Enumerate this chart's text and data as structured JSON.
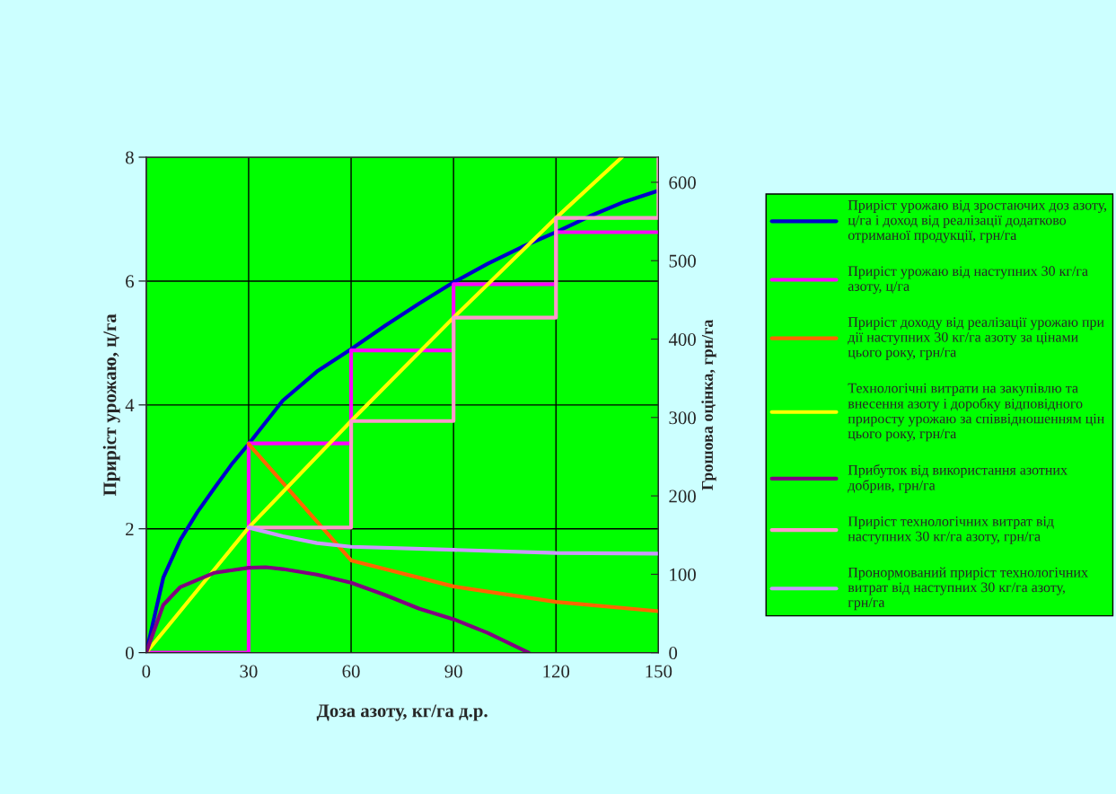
{
  "chart_data": {
    "type": "line",
    "xlabel": "Доза азоту, кг/га д.р.",
    "ylabel": "Приріст урожаю, ц/га",
    "y2label": "Грошова оцінка, грн/га",
    "xlim": [
      0,
      150
    ],
    "xticks": [
      0,
      30,
      60,
      90,
      120,
      150
    ],
    "ylim": [
      0,
      8
    ],
    "yticks": [
      0,
      2,
      4,
      6,
      8
    ],
    "y2lim": [
      0,
      632
    ],
    "y2ticks": [
      0,
      100,
      200,
      300,
      400,
      500,
      600
    ],
    "grid": true,
    "legend": "right",
    "series": [
      {
        "name": "Приріст урожаю від зростаючих доз азоту, ц/га і доход від реалізації додатково отриманої продукції, грн/га",
        "color": "#0000cc",
        "x": [
          0,
          5,
          10,
          15,
          20,
          25,
          30,
          40,
          50,
          60,
          70,
          80,
          90,
          100,
          110,
          120,
          130,
          140,
          150
        ],
        "values": [
          0,
          1.21,
          1.82,
          2.27,
          2.66,
          3.04,
          3.37,
          4.07,
          4.54,
          4.9,
          5.28,
          5.64,
          5.98,
          6.28,
          6.55,
          6.79,
          7.05,
          7.28,
          7.46
        ]
      },
      {
        "name": "Приріст урожаю від наступних 30 кг/га азоту, ц/га",
        "type": "step",
        "color": "#ff00ff",
        "x": [
          0,
          30,
          60,
          90,
          120,
          150
        ],
        "values": [
          0,
          3.38,
          4.88,
          5.95,
          6.79,
          6.79
        ]
      },
      {
        "name": "Приріст доходу від реалізації урожаю при дії наступних 30 кг/га азоту за цінами цього року, грн/га",
        "color": "#ff6600",
        "x": [
          30,
          60,
          90,
          120,
          150
        ],
        "values": [
          3.37,
          1.49,
          1.07,
          0.82,
          0.67
        ]
      },
      {
        "name": "Технологічні витрати на закупівлю та внесення азоту і доробку відповідного приросту урожаю за співвідношенням цін цього року, грн/га",
        "color": "#ffff00",
        "x": [
          0,
          30,
          60,
          90,
          120,
          139.3
        ],
        "values": [
          0,
          2.02,
          3.74,
          5.41,
          7.02,
          8
        ]
      },
      {
        "name": "Прибуток від використання азотних добрив, грн/га",
        "color": "#800080",
        "x": [
          0,
          5,
          10,
          20,
          30,
          35,
          40,
          50,
          60,
          70,
          80,
          90,
          100,
          112
        ],
        "values": [
          0,
          0.77,
          1.06,
          1.29,
          1.37,
          1.38,
          1.35,
          1.26,
          1.13,
          0.93,
          0.71,
          0.54,
          0.32,
          0
        ]
      },
      {
        "name": "Приріст технологічних витрат від наступних 30 кг/га азоту, грн/га",
        "type": "step",
        "color": "#ff99cc",
        "x": [
          30,
          60,
          90,
          120,
          150
        ],
        "values": [
          2.02,
          3.74,
          5.41,
          7.02,
          8
        ]
      },
      {
        "name": "Пронормований приріст технологічних витрат від наступних 30 кг/га азоту, грн/га",
        "color": "#cc99ff",
        "x": [
          30,
          40,
          50,
          60,
          90,
          120,
          150
        ],
        "values": [
          2.02,
          1.88,
          1.77,
          1.71,
          1.66,
          1.61,
          1.6
        ]
      }
    ]
  }
}
